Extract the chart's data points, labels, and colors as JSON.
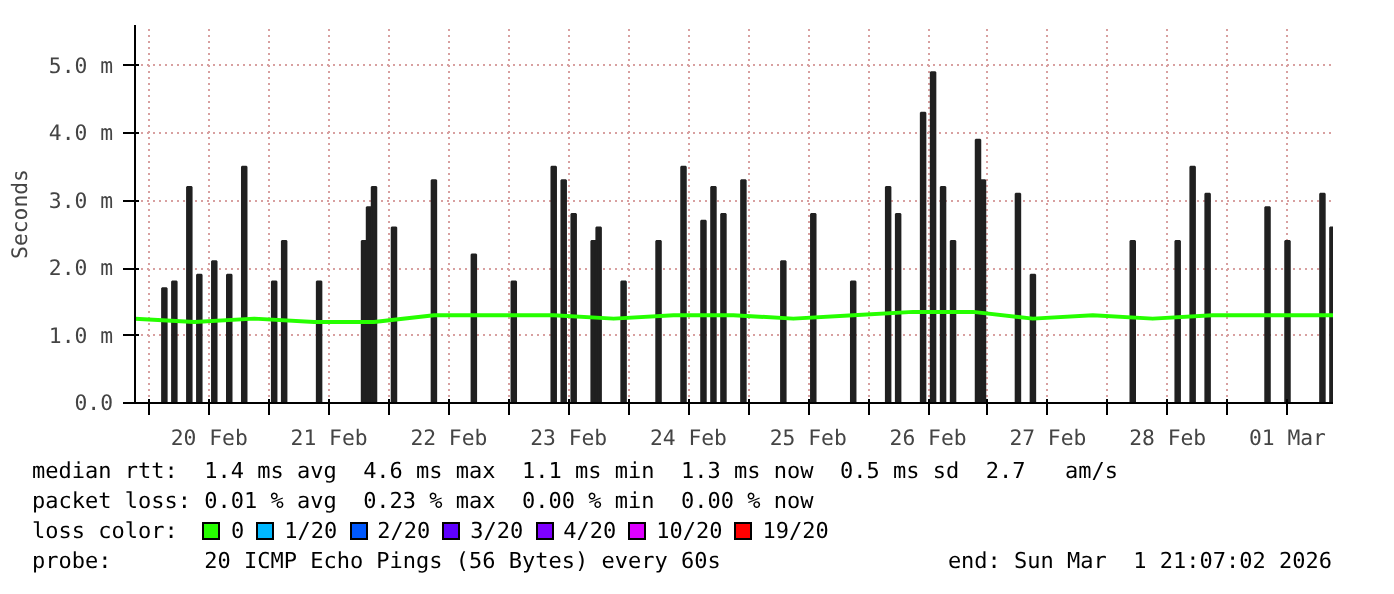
{
  "chart_data": {
    "type": "line",
    "ylabel": "Seconds",
    "legend_title": "loss color:",
    "legend": "bottom",
    "grid": true,
    "xlim": [
      "2026-02-19T21:07",
      "2026-03-01T21:07"
    ],
    "xticks": [
      {
        "value": "2026-02-20T00:00",
        "label": null
      },
      {
        "value": "2026-02-20T12:00",
        "label": "20 Feb"
      },
      {
        "value": "2026-02-21T00:00",
        "label": null
      },
      {
        "value": "2026-02-21T12:00",
        "label": "21 Feb"
      },
      {
        "value": "2026-02-22T00:00",
        "label": null
      },
      {
        "value": "2026-02-22T12:00",
        "label": "22 Feb"
      },
      {
        "value": "2026-02-23T00:00",
        "label": null
      },
      {
        "value": "2026-02-23T12:00",
        "label": "23 Feb"
      },
      {
        "value": "2026-02-24T00:00",
        "label": null
      },
      {
        "value": "2026-02-24T12:00",
        "label": "24 Feb"
      },
      {
        "value": "2026-02-25T00:00",
        "label": null
      },
      {
        "value": "2026-02-25T12:00",
        "label": "25 Feb"
      },
      {
        "value": "2026-02-26T00:00",
        "label": null
      },
      {
        "value": "2026-02-26T12:00",
        "label": "26 Feb"
      },
      {
        "value": "2026-02-27T00:00",
        "label": null
      },
      {
        "value": "2026-02-27T12:00",
        "label": "27 Feb"
      },
      {
        "value": "2026-02-28T00:00",
        "label": null
      },
      {
        "value": "2026-02-28T12:00",
        "label": "28 Feb"
      },
      {
        "value": "2026-03-01T00:00",
        "label": null
      },
      {
        "value": "2026-03-01T12:00",
        "label": "01 Mar"
      }
    ],
    "ylim": [
      0,
      5.6
    ],
    "yticks": [
      {
        "value": 0,
        "label": "0.0"
      },
      {
        "value": 1,
        "label": "1.0 m"
      },
      {
        "value": 2,
        "label": "2.0 m"
      },
      {
        "value": 3,
        "label": "3.0 m"
      },
      {
        "value": 4,
        "label": "4.0 m"
      },
      {
        "value": 5,
        "label": "5.0 m"
      }
    ],
    "series": [
      {
        "type": "bar",
        "color": "#202020",
        "x": [
          "2026-02-20T03:00",
          "2026-02-20T05:00",
          "2026-02-20T08:00",
          "2026-02-20T10:00",
          "2026-02-20T13:00",
          "2026-02-20T16:00",
          "2026-02-20T19:00",
          "2026-02-21T01:00",
          "2026-02-21T03:00",
          "2026-02-21T10:00",
          "2026-02-21T19:00",
          "2026-02-21T20:00",
          "2026-02-21T21:00",
          "2026-02-22T01:00",
          "2026-02-22T09:00",
          "2026-02-22T17:00",
          "2026-02-23T01:00",
          "2026-02-23T09:00",
          "2026-02-23T11:00",
          "2026-02-23T13:00",
          "2026-02-23T17:00",
          "2026-02-23T18:00",
          "2026-02-23T23:00",
          "2026-02-24T06:00",
          "2026-02-24T11:00",
          "2026-02-24T15:00",
          "2026-02-24T17:00",
          "2026-02-24T19:00",
          "2026-02-24T23:00",
          "2026-02-25T07:00",
          "2026-02-25T13:00",
          "2026-02-25T21:00",
          "2026-02-26T04:00",
          "2026-02-26T06:00",
          "2026-02-26T11:00",
          "2026-02-26T13:00",
          "2026-02-26T15:00",
          "2026-02-26T17:00",
          "2026-02-26T22:00",
          "2026-02-26T23:00",
          "2026-02-27T06:00",
          "2026-02-27T09:00",
          "2026-02-28T05:00",
          "2026-02-28T14:00",
          "2026-02-28T17:00",
          "2026-02-28T20:00",
          "2026-03-01T08:00",
          "2026-03-01T12:00",
          "2026-03-01T19:00",
          "2026-03-01T21:00"
        ],
        "values": [
          1.7,
          1.8,
          3.2,
          1.9,
          2.1,
          1.9,
          3.5,
          1.8,
          2.4,
          1.8,
          2.4,
          2.9,
          3.2,
          2.6,
          3.3,
          2.2,
          1.8,
          3.5,
          3.3,
          2.8,
          2.4,
          2.6,
          1.8,
          2.4,
          3.5,
          2.7,
          3.2,
          2.8,
          3.3,
          2.1,
          2.8,
          1.8,
          3.2,
          2.8,
          4.3,
          4.9,
          3.2,
          2.4,
          3.9,
          3.3,
          3.1,
          1.9,
          2.4,
          2.4,
          3.5,
          3.1,
          2.9,
          2.4,
          3.1,
          2.6
        ]
      },
      {
        "name": "0",
        "color": "#26ff00",
        "x": [
          "2026-02-19T21:07",
          "2026-02-20T09:00",
          "2026-02-20T21:00",
          "2026-02-21T09:00",
          "2026-02-21T21:00",
          "2026-02-22T09:00",
          "2026-02-22T21:00",
          "2026-02-23T09:00",
          "2026-02-23T21:00",
          "2026-02-24T09:00",
          "2026-02-24T21:00",
          "2026-02-25T09:00",
          "2026-02-25T21:00",
          "2026-02-26T09:00",
          "2026-02-26T21:00",
          "2026-02-27T09:00",
          "2026-02-27T21:00",
          "2026-02-28T09:00",
          "2026-02-28T21:00",
          "2026-03-01T09:00",
          "2026-03-01T21:07"
        ],
        "values": [
          1.25,
          1.2,
          1.25,
          1.2,
          1.2,
          1.3,
          1.3,
          1.3,
          1.25,
          1.3,
          1.3,
          1.25,
          1.3,
          1.35,
          1.35,
          1.25,
          1.3,
          1.25,
          1.3,
          1.3,
          1.3
        ]
      },
      {
        "name": "1/20",
        "color": "#00b8ff"
      },
      {
        "name": "2/20",
        "color": "#0059ff"
      },
      {
        "name": "3/20",
        "color": "#5e00ff"
      },
      {
        "name": "4/20",
        "color": "#7e00ff"
      },
      {
        "name": "10/20",
        "color": "#dd00ff"
      },
      {
        "name": "19/20",
        "color": "#ff0000"
      }
    ],
    "annotations": [
      "median rtt:  1.4 ms avg  4.6 ms max  1.1 ms min  1.3 ms now  0.5 ms sd  2.7   am/s",
      "packet loss: 0.01 % avg  0.23 % max  0.00 % min  0.00 % now",
      "probe:       20 ICMP Echo Pings (56 Bytes) every 60s",
      "end: Sun Mar  1 21:07:02 2026"
    ]
  }
}
